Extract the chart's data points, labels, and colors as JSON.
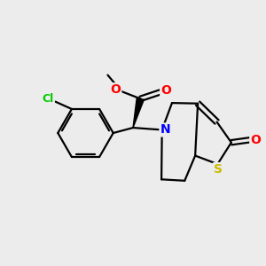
{
  "background_color": "#ececec",
  "atom_colors": {
    "C": "#000000",
    "N": "#0000ff",
    "O": "#ff0000",
    "S": "#ccbb00",
    "Cl": "#00cc00"
  },
  "figsize": [
    3.0,
    3.0
  ],
  "dpi": 100
}
